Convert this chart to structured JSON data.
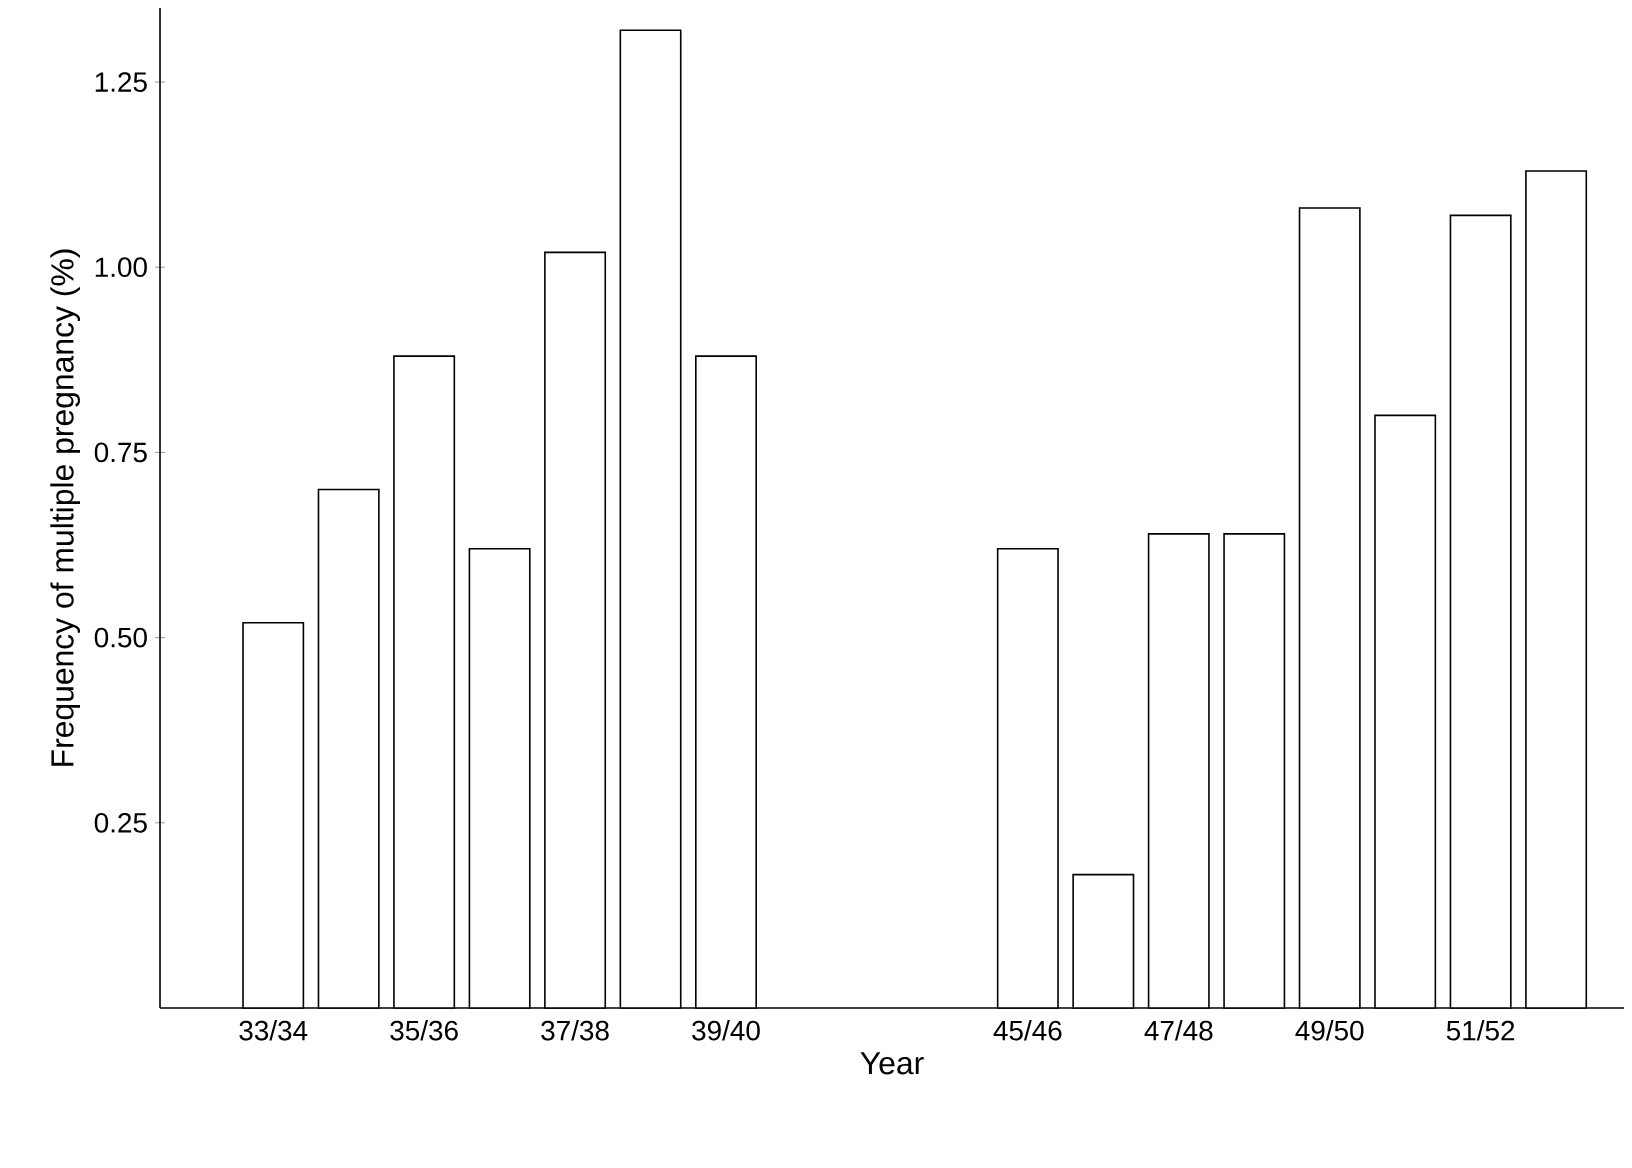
{
  "chart_data": {
    "type": "bar",
    "xlabel": "Year",
    "ylabel": "Frequency of  multiple pregnancy  (%)",
    "categories": [
      "33/34",
      null,
      "35/36",
      null,
      "37/38",
      null,
      "39/40",
      null,
      null,
      null,
      "45/46",
      null,
      "47/48",
      null,
      "49/50",
      null,
      "51/52",
      null
    ],
    "values": [
      0.52,
      0.7,
      0.88,
      0.62,
      1.02,
      1.32,
      0.88,
      null,
      null,
      null,
      0.62,
      0.18,
      0.64,
      0.64,
      1.08,
      0.8,
      1.07,
      1.13
    ],
    "color": "#ffffff",
    "ylim": [
      0,
      1.35
    ],
    "yticks": [
      {
        "value": 0.25,
        "label": "0.25"
      },
      {
        "value": 0.5,
        "label": "0.50"
      },
      {
        "value": 0.75,
        "label": "0.75"
      },
      {
        "value": 1.0,
        "label": "1.00"
      },
      {
        "value": 1.25,
        "label": "1.25"
      }
    ]
  }
}
